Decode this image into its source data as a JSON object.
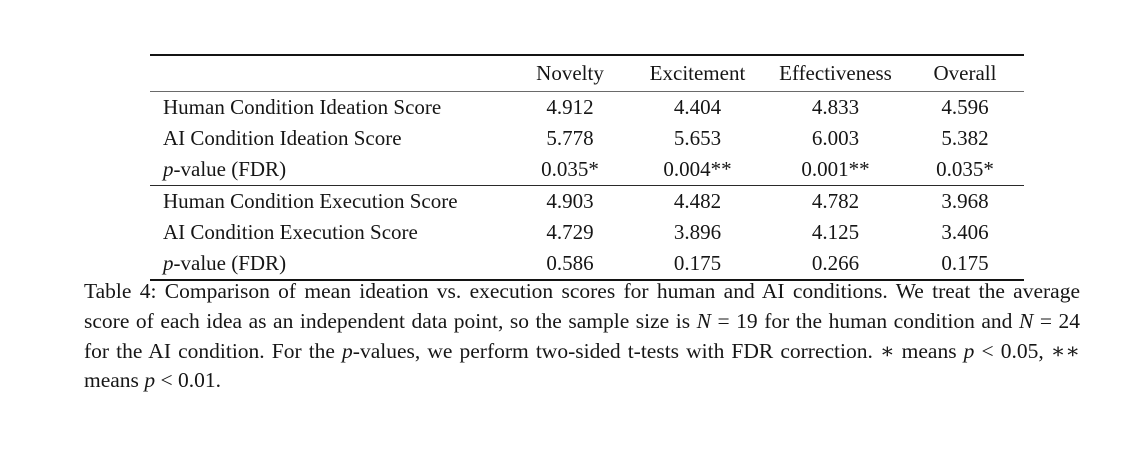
{
  "colors": {
    "background": "#ffffff",
    "text": "#161616",
    "rule_heavy": "#141414",
    "rule_light": "#6a6a6a"
  },
  "table": {
    "columns": [
      "Novelty",
      "Excitement",
      "Effectiveness",
      "Overall"
    ],
    "sections": [
      {
        "name": "ideation",
        "rows": [
          {
            "label": [
              {
                "t": "Human Condition Ideation Score"
              }
            ],
            "values": [
              "4.912",
              "4.404",
              "4.833",
              "4.596"
            ]
          },
          {
            "label": [
              {
                "t": "AI Condition Ideation Score"
              }
            ],
            "values": [
              "5.778",
              "5.653",
              "6.003",
              "5.382"
            ]
          },
          {
            "label": [
              {
                "t": "p",
                "i": true
              },
              {
                "t": "-value (FDR)"
              }
            ],
            "values": [
              "0.035*",
              "0.004**",
              "0.001**",
              "0.035*"
            ]
          }
        ]
      },
      {
        "name": "execution",
        "rows": [
          {
            "label": [
              {
                "t": "Human Condition Execution Score"
              }
            ],
            "values": [
              "4.903",
              "4.482",
              "4.782",
              "3.968"
            ]
          },
          {
            "label": [
              {
                "t": "AI Condition Execution Score"
              }
            ],
            "values": [
              "4.729",
              "3.896",
              "4.125",
              "3.406"
            ]
          },
          {
            "label": [
              {
                "t": "p",
                "i": true
              },
              {
                "t": "-value (FDR)"
              }
            ],
            "values": [
              "0.586",
              "0.175",
              "0.266",
              "0.175"
            ]
          }
        ]
      }
    ]
  },
  "caption": {
    "segments": [
      {
        "t": "Table 4: Comparison of mean ideation vs. execution scores for human and AI conditions. We treat the average score of each idea as an independent data point, so the sample size is "
      },
      {
        "t": "N",
        "i": true
      },
      {
        "t": " = 19 for the human condition and "
      },
      {
        "t": "N",
        "i": true
      },
      {
        "t": " = 24 for the AI condition. For the "
      },
      {
        "t": "p",
        "i": true
      },
      {
        "t": "-values, we perform two-sided t-tests with FDR correction. ∗ means "
      },
      {
        "t": "p",
        "i": true
      },
      {
        "t": " < 0.05, ∗∗ means "
      },
      {
        "t": "p",
        "i": true
      },
      {
        "t": " < 0.01."
      }
    ]
  }
}
